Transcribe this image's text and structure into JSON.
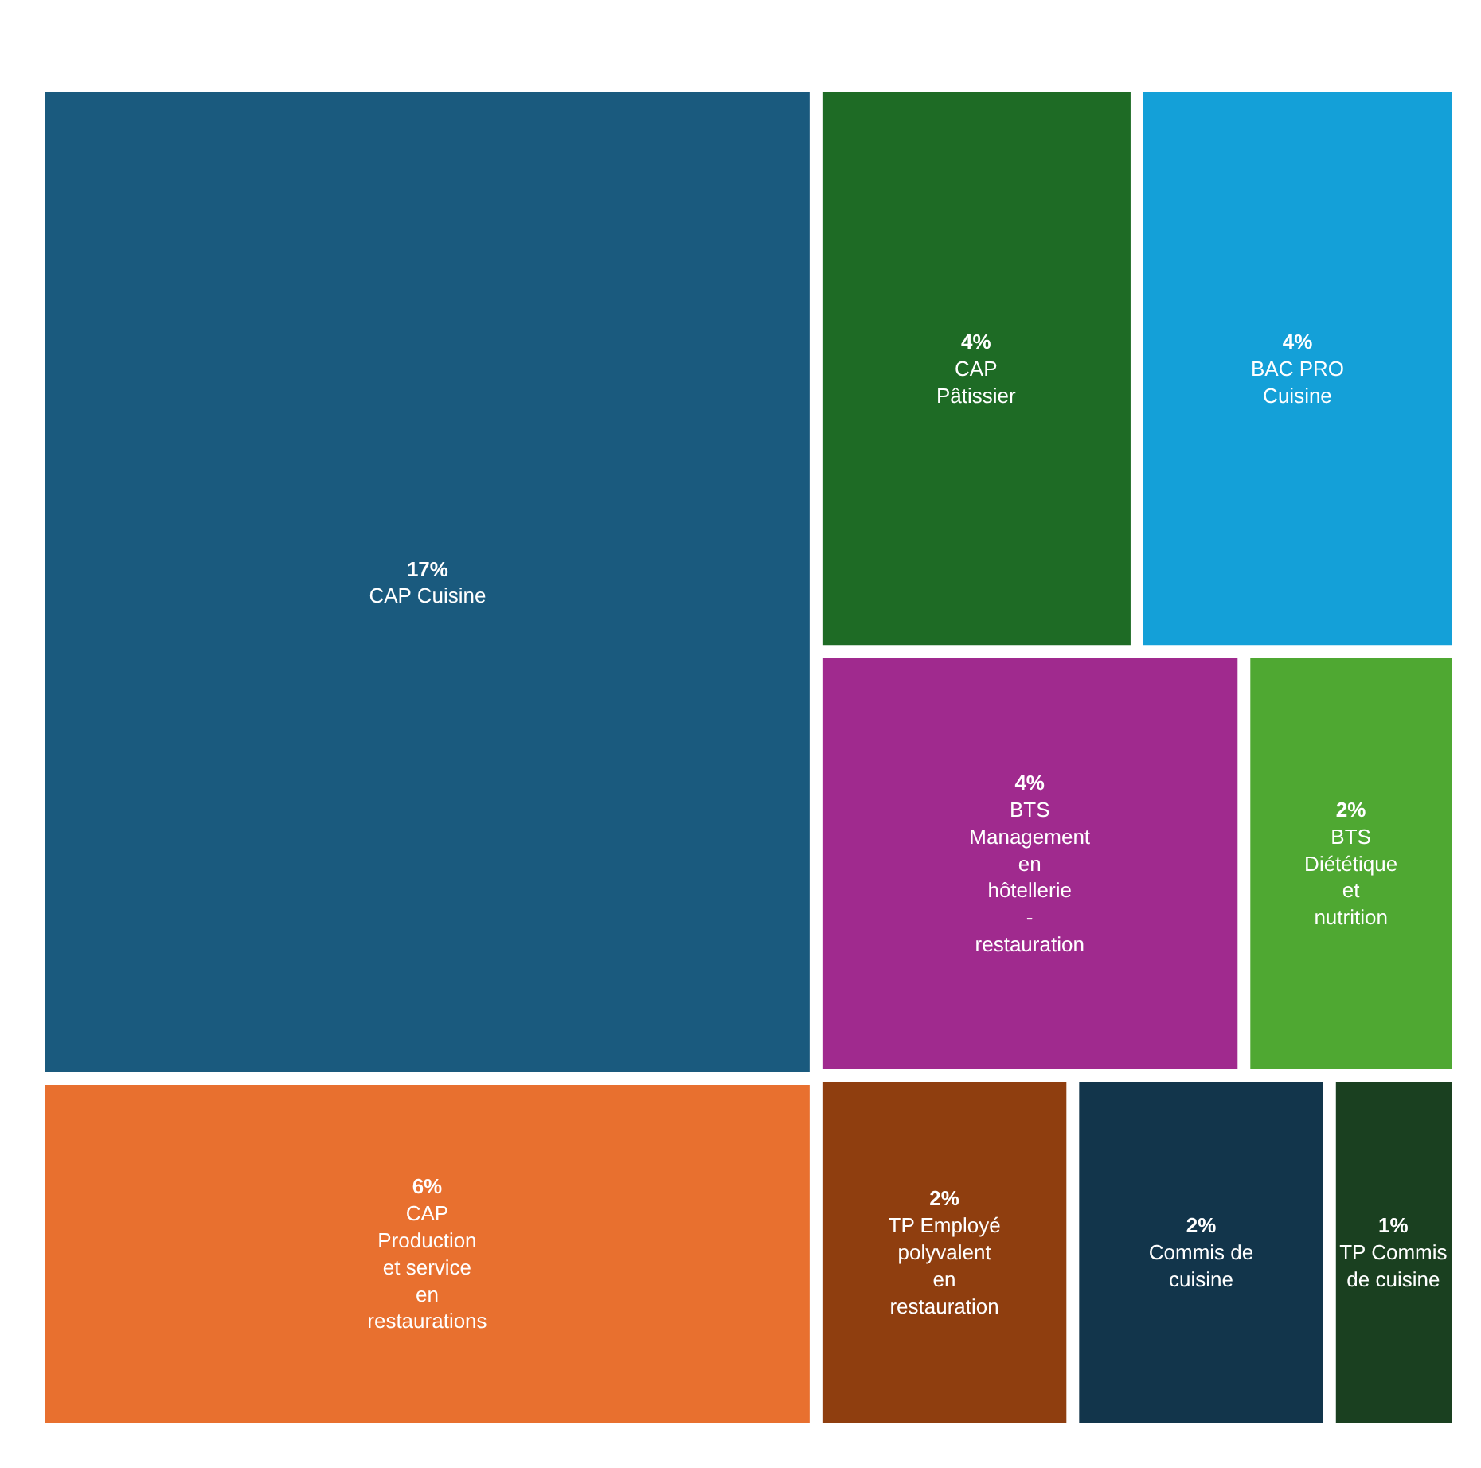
{
  "chart_data": {
    "type": "other",
    "categories": [
      "CAP Cuisine",
      "CAP Production et service en restaurations",
      "CAP Pâtissier",
      "BAC PRO Cuisine",
      "BTS Management en hôtellerie - restauration",
      "BTS Diététique et nutrition",
      "TP Employé polyvalent en restauration",
      "Commis de cuisine",
      "TP Commis de cuisine"
    ],
    "values": [
      17,
      6,
      4,
      4,
      4,
      2,
      2,
      2,
      1
    ],
    "colors": [
      "#1a5a7e",
      "#e8702f",
      "#1e6b25",
      "#14a0d8",
      "#a02a8e",
      "#4fa832",
      "#8f3e0f",
      "#12354b",
      "#1a4020"
    ],
    "value_labels": [
      "17%",
      "6%",
      "4%",
      "4%",
      "4%",
      "2%",
      "2%",
      "2%",
      "1%"
    ]
  }
}
